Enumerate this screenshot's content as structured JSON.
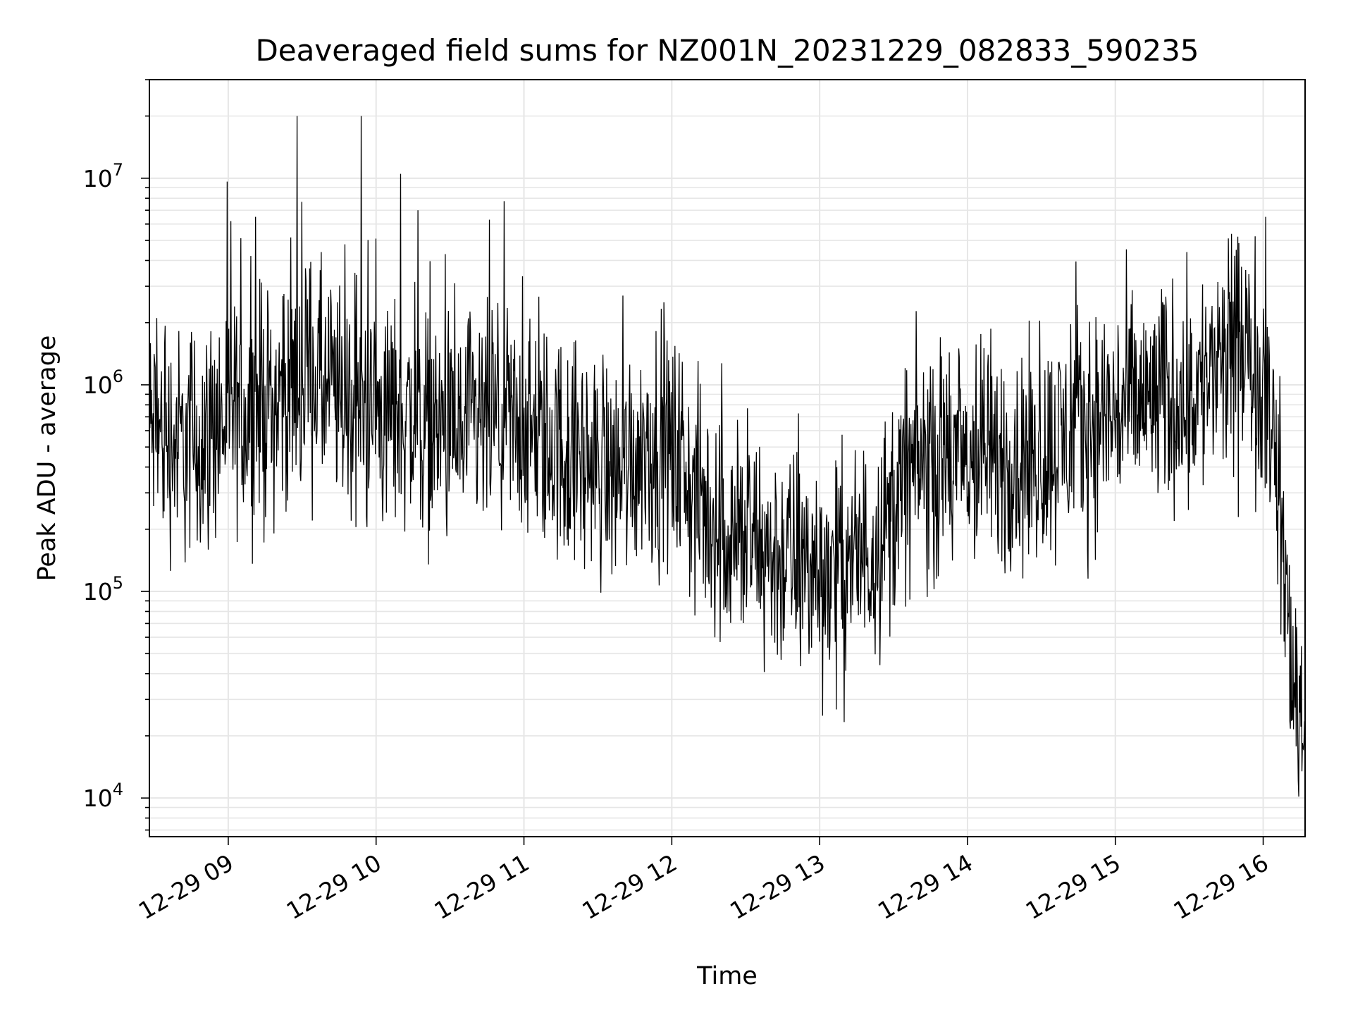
{
  "chart_data": {
    "type": "line",
    "title": "Deaveraged field sums for NZ001N_20231229_082833_590235",
    "xlabel": "Time",
    "ylabel": "Peak ADU - average",
    "yscale": "log",
    "grid": true,
    "ylim": [
      6500,
      30000000
    ],
    "xlim": [
      "12-29 08:28",
      "12-29 16:17"
    ],
    "x_ticks": [
      "12-29 09",
      "12-29 10",
      "12-29 11",
      "12-29 12",
      "12-29 13",
      "12-29 14",
      "12-29 15",
      "12-29 16"
    ],
    "y_ticks": [
      {
        "value": 10000,
        "base": "10",
        "exp": "4"
      },
      {
        "value": 100000,
        "base": "10",
        "exp": "5"
      },
      {
        "value": 1000000,
        "base": "10",
        "exp": "6"
      },
      {
        "value": 10000000,
        "base": "10",
        "exp": "7"
      }
    ],
    "line_color": "#000000",
    "series": [
      {
        "x": [
          "12-29 08:28",
          "12-29 08:35",
          "12-29 08:43",
          "12-29 08:50",
          "12-29 08:57",
          "12-29 09:04",
          "12-29 09:11",
          "12-29 09:18",
          "12-29 09:26",
          "12-29 09:34",
          "12-29 09:41",
          "12-29 09:49",
          "12-29 09:56",
          "12-29 10:03",
          "12-29 10:10",
          "12-29 10:18",
          "12-29 10:26",
          "12-29 10:34",
          "12-29 10:42",
          "12-29 10:49",
          "12-29 10:56",
          "12-29 11:04",
          "12-29 11:12",
          "12-29 11:20",
          "12-29 11:28",
          "12-29 11:36",
          "12-29 11:44",
          "12-29 11:52",
          "12-29 12:00",
          "12-29 12:08",
          "12-29 12:16",
          "12-29 12:24",
          "12-29 12:32",
          "12-29 12:40",
          "12-29 12:48",
          "12-29 12:56",
          "12-29 13:04",
          "12-29 13:12",
          "12-29 13:20",
          "12-29 13:28",
          "12-29 13:36",
          "12-29 13:44",
          "12-29 13:52",
          "12-29 14:00",
          "12-29 14:08",
          "12-29 14:16",
          "12-29 14:24",
          "12-29 14:32",
          "12-29 14:40",
          "12-29 14:48",
          "12-29 14:56",
          "12-29 15:04",
          "12-29 15:12",
          "12-29 15:20",
          "12-29 15:28",
          "12-29 15:36",
          "12-29 15:44",
          "12-29 15:52",
          "12-29 16:00",
          "12-29 16:04",
          "12-29 16:08",
          "12-29 16:12",
          "12-29 16:17"
        ],
        "values": [
          600000,
          550000,
          500000,
          550000,
          650000,
          700000,
          750000,
          800000,
          1000000,
          1100000,
          900000,
          800000,
          750000,
          700000,
          750000,
          650000,
          600000,
          550000,
          600000,
          650000,
          600000,
          550000,
          500000,
          450000,
          400000,
          380000,
          450000,
          520000,
          480000,
          300000,
          220000,
          180000,
          170000,
          150000,
          140000,
          130000,
          120000,
          130000,
          160000,
          220000,
          380000,
          420000,
          400000,
          420000,
          450000,
          420000,
          400000,
          480000,
          550000,
          650000,
          700000,
          750000,
          800000,
          850000,
          900000,
          1000000,
          1200000,
          1300000,
          1100000,
          600000,
          150000,
          40000,
          22000
        ]
      }
    ],
    "spikes": [
      {
        "x": "12-29 09:01",
        "y": 6200000
      },
      {
        "x": "12-29 09:11",
        "y": 6500000
      },
      {
        "x": "12-29 09:28",
        "y": 20000000
      },
      {
        "x": "12-29 09:54",
        "y": 20000000
      },
      {
        "x": "12-29 10:00",
        "y": 5100000
      },
      {
        "x": "12-29 10:10",
        "y": 10500000
      },
      {
        "x": "12-29 10:17",
        "y": 7000000
      },
      {
        "x": "12-29 10:46",
        "y": 6300000
      },
      {
        "x": "12-29 16:01",
        "y": 6500000
      }
    ]
  }
}
